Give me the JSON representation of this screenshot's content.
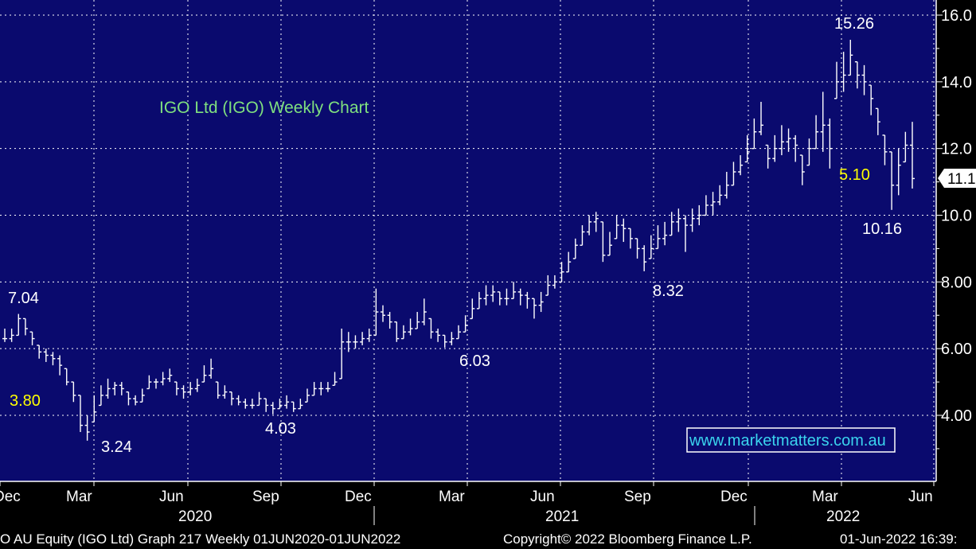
{
  "chart_data": {
    "type": "ohlc",
    "title": "IGO Ltd (IGO) Weekly Chart",
    "watermark": "www.marketmatters.com.au",
    "frequency": "weekly",
    "x_months": [
      {
        "label": "Dec",
        "date": "2020-06-01"
      },
      {
        "label": "Mar",
        "date": "2020-03-01"
      },
      {
        "label": "Jun",
        "date": "2020-06-01"
      },
      {
        "label": "Sep",
        "date": "2020-09-01"
      },
      {
        "label": "Dec",
        "date": "2020-12-01"
      },
      {
        "label": "Mar",
        "date": "2021-03-01"
      },
      {
        "label": "Jun",
        "date": "2021-06-01"
      },
      {
        "label": "Sep",
        "date": "2021-09-01"
      },
      {
        "label": "Dec",
        "date": "2021-12-01"
      },
      {
        "label": "Mar",
        "date": "2022-03-01"
      },
      {
        "label": "Jun",
        "date": "2022-06-01"
      }
    ],
    "x_years": [
      "2020",
      "2021",
      "2022"
    ],
    "y_ticks": [
      "16.0",
      "14.0",
      "12.0",
      "10.0",
      "8.00",
      "6.00",
      "4.00"
    ],
    "ylim": [
      2.0,
      16.4
    ],
    "last_price_label": "11.1",
    "annotations": [
      {
        "text": "7.04",
        "color": "#ffffff"
      },
      {
        "text": "3.80",
        "color": "#ffff00"
      },
      {
        "text": "3.24",
        "color": "#ffffff"
      },
      {
        "text": "4.03",
        "color": "#ffffff"
      },
      {
        "text": "6.03",
        "color": "#ffffff"
      },
      {
        "text": "8.32",
        "color": "#ffffff"
      },
      {
        "text": "15.26",
        "color": "#ffffff"
      },
      {
        "text": "5.10",
        "color": "#ffff00"
      },
      {
        "text": "10.16",
        "color": "#ffffff"
      }
    ],
    "closes": [
      6.3,
      6.4,
      6.9,
      6.6,
      6.3,
      5.9,
      5.8,
      5.7,
      5.5,
      5.0,
      4.6,
      3.7,
      3.5,
      4.1,
      4.6,
      4.8,
      4.9,
      4.8,
      4.5,
      4.4,
      4.6,
      5.0,
      5.0,
      5.1,
      5.2,
      4.8,
      4.7,
      4.8,
      4.9,
      5.2,
      5.4,
      4.6,
      4.7,
      4.5,
      4.4,
      4.3,
      4.3,
      4.5,
      4.3,
      4.2,
      4.3,
      4.4,
      4.2,
      4.3,
      4.6,
      4.8,
      4.8,
      4.8,
      5.0,
      6.2,
      6.2,
      6.2,
      6.3,
      6.4,
      7.1,
      7.0,
      6.8,
      6.3,
      6.5,
      6.6,
      6.8,
      7.1,
      6.5,
      6.4,
      6.2,
      6.3,
      6.5,
      6.7,
      7.2,
      7.5,
      7.6,
      7.7,
      7.5,
      7.5,
      7.7,
      7.6,
      7.5,
      7.3,
      7.4,
      7.9,
      8.0,
      8.3,
      8.6,
      9.1,
      9.5,
      9.8,
      9.9,
      8.8,
      9.1,
      9.7,
      9.6,
      9.3,
      9.0,
      8.6,
      9.0,
      9.3,
      9.4,
      9.8,
      9.9,
      9.7,
      9.9,
      10.0,
      10.3,
      10.4,
      10.6,
      10.9,
      11.3,
      11.5,
      11.9,
      12.5,
      12.7,
      11.7,
      12.0,
      12.2,
      12.3,
      12.1,
      11.3,
      12.0,
      12.5,
      12.7,
      12.0,
      14.0,
      14.2,
      14.8,
      14.2,
      14.0,
      13.5,
      12.8,
      11.9,
      10.9,
      11.5,
      12.1,
      11.1
    ],
    "ranges": [
      [
        6.2,
        6.6
      ],
      [
        6.2,
        6.6
      ],
      [
        6.4,
        7.04
      ],
      [
        6.4,
        6.9
      ],
      [
        6.1,
        6.5
      ],
      [
        5.7,
        6.1
      ],
      [
        5.6,
        6.0
      ],
      [
        5.5,
        5.9
      ],
      [
        5.2,
        5.8
      ],
      [
        4.9,
        5.4
      ],
      [
        4.4,
        5.0
      ],
      [
        3.5,
        4.6
      ],
      [
        3.24,
        4.0
      ],
      [
        3.8,
        4.6
      ],
      [
        4.3,
        4.9
      ],
      [
        4.5,
        5.1
      ],
      [
        4.6,
        5.0
      ],
      [
        4.6,
        5.0
      ],
      [
        4.3,
        4.7
      ],
      [
        4.3,
        4.6
      ],
      [
        4.4,
        4.8
      ],
      [
        4.8,
        5.2
      ],
      [
        4.8,
        5.1
      ],
      [
        4.9,
        5.3
      ],
      [
        5.0,
        5.4
      ],
      [
        4.6,
        5.0
      ],
      [
        4.5,
        4.9
      ],
      [
        4.6,
        5.0
      ],
      [
        4.7,
        5.1
      ],
      [
        5.0,
        5.5
      ],
      [
        5.1,
        5.7
      ],
      [
        4.5,
        5.0
      ],
      [
        4.5,
        4.9
      ],
      [
        4.3,
        4.7
      ],
      [
        4.3,
        4.6
      ],
      [
        4.2,
        4.5
      ],
      [
        4.2,
        4.5
      ],
      [
        4.3,
        4.7
      ],
      [
        4.1,
        4.5
      ],
      [
        4.03,
        4.4
      ],
      [
        4.2,
        4.5
      ],
      [
        4.2,
        4.6
      ],
      [
        4.1,
        4.4
      ],
      [
        4.2,
        4.5
      ],
      [
        4.4,
        4.8
      ],
      [
        4.6,
        5.0
      ],
      [
        4.6,
        5.0
      ],
      [
        4.7,
        5.0
      ],
      [
        4.9,
        5.3
      ],
      [
        5.1,
        6.6
      ],
      [
        5.9,
        6.5
      ],
      [
        6.0,
        6.4
      ],
      [
        6.1,
        6.5
      ],
      [
        6.2,
        6.6
      ],
      [
        6.4,
        7.8
      ],
      [
        6.8,
        7.3
      ],
      [
        6.6,
        7.1
      ],
      [
        6.2,
        6.8
      ],
      [
        6.3,
        6.7
      ],
      [
        6.4,
        6.9
      ],
      [
        6.6,
        7.1
      ],
      [
        6.7,
        7.5
      ],
      [
        6.3,
        6.9
      ],
      [
        6.2,
        6.6
      ],
      [
        6.03,
        6.4
      ],
      [
        6.1,
        6.5
      ],
      [
        6.3,
        6.7
      ],
      [
        6.5,
        7.0
      ],
      [
        6.9,
        7.5
      ],
      [
        7.2,
        7.7
      ],
      [
        7.3,
        7.9
      ],
      [
        7.4,
        7.9
      ],
      [
        7.3,
        7.7
      ],
      [
        7.3,
        7.8
      ],
      [
        7.5,
        8.0
      ],
      [
        7.3,
        7.8
      ],
      [
        7.2,
        7.7
      ],
      [
        6.9,
        7.5
      ],
      [
        7.1,
        7.7
      ],
      [
        7.6,
        8.2
      ],
      [
        7.8,
        8.2
      ],
      [
        8.0,
        8.6
      ],
      [
        8.3,
        8.9
      ],
      [
        8.7,
        9.3
      ],
      [
        9.1,
        9.7
      ],
      [
        9.4,
        10.0
      ],
      [
        9.5,
        10.1
      ],
      [
        8.6,
        9.8
      ],
      [
        8.8,
        9.5
      ],
      [
        9.3,
        10.0
      ],
      [
        9.2,
        9.9
      ],
      [
        9.0,
        9.6
      ],
      [
        8.7,
        9.3
      ],
      [
        8.32,
        9.1
      ],
      [
        8.7,
        9.4
      ],
      [
        9.0,
        9.7
      ],
      [
        9.1,
        9.8
      ],
      [
        9.4,
        10.1
      ],
      [
        9.5,
        10.2
      ],
      [
        8.9,
        10.0
      ],
      [
        9.5,
        10.2
      ],
      [
        9.7,
        10.3
      ],
      [
        10.0,
        10.6
      ],
      [
        10.0,
        10.7
      ],
      [
        10.3,
        10.9
      ],
      [
        10.5,
        11.3
      ],
      [
        10.9,
        11.6
      ],
      [
        11.2,
        11.8
      ],
      [
        11.6,
        12.4
      ],
      [
        12.0,
        12.9
      ],
      [
        12.4,
        13.4
      ],
      [
        11.4,
        12.1
      ],
      [
        11.6,
        12.4
      ],
      [
        11.8,
        12.7
      ],
      [
        11.9,
        12.6
      ],
      [
        11.6,
        12.4
      ],
      [
        10.9,
        11.8
      ],
      [
        11.5,
        12.3
      ],
      [
        12.0,
        13.0
      ],
      [
        11.9,
        13.7
      ],
      [
        11.4,
        12.9
      ],
      [
        13.5,
        14.6
      ],
      [
        13.7,
        14.9
      ],
      [
        14.2,
        15.26
      ],
      [
        13.8,
        14.6
      ],
      [
        13.6,
        14.5
      ],
      [
        13.0,
        13.9
      ],
      [
        12.4,
        13.2
      ],
      [
        11.5,
        12.4
      ],
      [
        10.16,
        11.9
      ],
      [
        10.6,
        12.0
      ],
      [
        11.6,
        12.5
      ],
      [
        10.8,
        12.8
      ]
    ]
  },
  "footer": {
    "left": "O AU Equity (IGO Ltd) Graph 217  Weekly 01JUN2020-01JUN2022",
    "center": "Copyright© 2022 Bloomberg Finance L.P.",
    "right": "01-Jun-2022 16:39:"
  },
  "colors": {
    "background": "#000000",
    "plot": "#0a0a6e",
    "grid": "#ffffff",
    "bars": "#ffffff",
    "title": "#7fe07f",
    "watermark": "#3ad4ee",
    "highlight": "#ffff00"
  }
}
